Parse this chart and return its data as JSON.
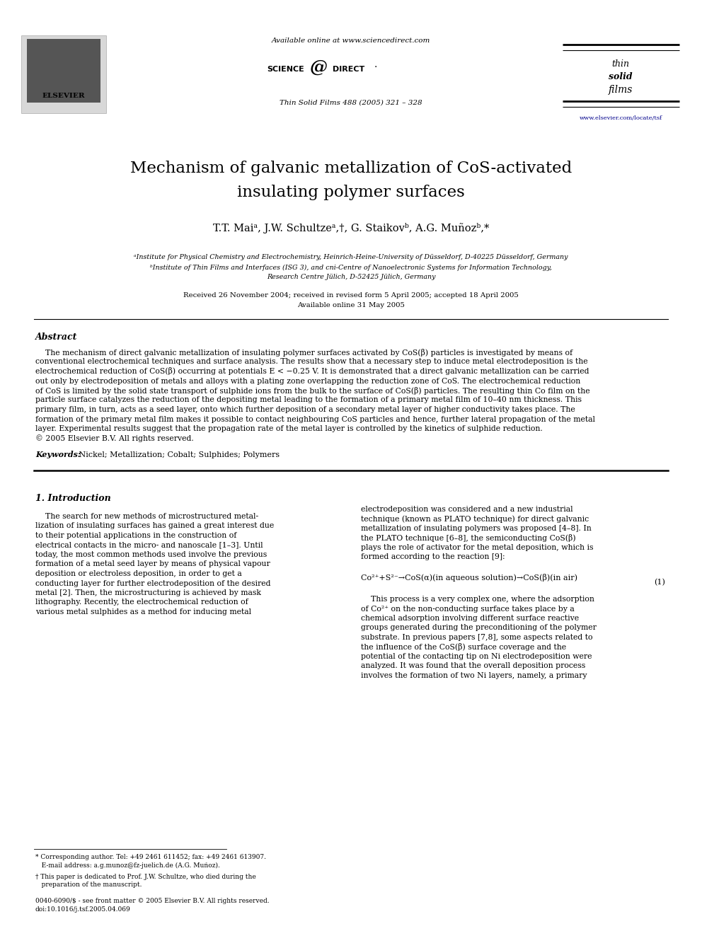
{
  "bg_color": "#ffffff",
  "page_width": 9.92,
  "page_height": 13.23,
  "header_available_online": "Available online at www.sciencedirect.com",
  "header_journal": "Thin Solid Films 488 (2005) 321 – 328",
  "header_url": "www.elsevier.com/locate/tsf",
  "title_line1": "Mechanism of galvanic metallization of CoS-activated",
  "title_line2": "insulating polymer surfaces",
  "authors": "T.T. Maiᵃ, J.W. Schultzeᵃ,†, G. Staikovᵇ, A.G. Muñozᵇ,*",
  "affil_a": "ᵃInstitute for Physical Chemistry and Electrochemistry, Heinrich-Heine-University of Düsseldorf, D-40225 Düsseldorf, Germany",
  "affil_b": "ᵇInstitute of Thin Films and Interfaces (ISG 3), and cni-Centre of Nanoelectronic Systems for Information Technology,\nResearch Centre Jülich, D-52425 Jülich, Germany",
  "received": "Received 26 November 2004; received in revised form 5 April 2005; accepted 18 April 2005",
  "available": "Available online 31 May 2005",
  "abstract_title": "Abstract",
  "abstract_body_lines": [
    "    The mechanism of direct galvanic metallization of insulating polymer surfaces activated by CoS(β) particles is investigated by means of",
    "conventional electrochemical techniques and surface analysis. The results show that a necessary step to induce metal electrodeposition is the",
    "electrochemical reduction of CoS(β) occurring at potentials E < −0.25 V. It is demonstrated that a direct galvanic metallization can be carried",
    "out only by electrodeposition of metals and alloys with a plating zone overlapping the reduction zone of CoS. The electrochemical reduction",
    "of CoS is limited by the solid state transport of sulphide ions from the bulk to the surface of CoS(β) particles. The resulting thin Co film on the",
    "particle surface catalyzes the reduction of the depositing metal leading to the formation of a primary metal film of 10–40 nm thickness. This",
    "primary film, in turn, acts as a seed layer, onto which further deposition of a secondary metal layer of higher conductivity takes place. The",
    "formation of the primary metal film makes it possible to contact neighbouring CoS particles and hence, further lateral propagation of the metal",
    "layer. Experimental results suggest that the propagation rate of the metal layer is controlled by the kinetics of sulphide reduction.",
    "© 2005 Elsevier B.V. All rights reserved."
  ],
  "keywords_label": "Keywords:",
  "keywords": " Nickel; Metallization; Cobalt; Sulphides; Polymers",
  "section1_title": "1. Introduction",
  "section1_left_lines": [
    "    The search for new methods of microstructured metal-",
    "lization of insulating surfaces has gained a great interest due",
    "to their potential applications in the construction of",
    "electrical contacts in the micro- and nanoscale [1–3]. Until",
    "today, the most common methods used involve the previous",
    "formation of a metal seed layer by means of physical vapour",
    "deposition or electroless deposition, in order to get a",
    "conducting layer for further electrodeposition of the desired",
    "metal [2]. Then, the microstructuring is achieved by mask",
    "lithography. Recently, the electrochemical reduction of",
    "various metal sulphides as a method for inducing metal"
  ],
  "section1_right_lines": [
    "electrodeposition was considered and a new industrial",
    "technique (known as PLATO technique) for direct galvanic",
    "metallization of insulating polymers was proposed [4–8]. In",
    "the PLATO technique [6–8], the semiconducting CoS(β)",
    "plays the role of activator for the metal deposition, which is",
    "formed according to the reaction [9]:"
  ],
  "reaction_line1": "Co²⁺+S²⁻→CoS(α)(in aqueous solution)→CoS(β)(in air)",
  "reaction_number": "(1)",
  "section1_right2_lines": [
    "    This process is a very complex one, where the adsorption",
    "of Co²⁺ on the non-conducting surface takes place by a",
    "chemical adsorption involving different surface reactive",
    "groups generated during the preconditioning of the polymer",
    "substrate. In previous papers [7,8], some aspects related to",
    "the influence of the CoS(β) surface coverage and the",
    "potential of the contacting tip on Ni electrodeposition were",
    "analyzed. It was found that the overall deposition process",
    "involves the formation of two Ni layers, namely, a primary"
  ],
  "footnote_star_lines": [
    "* Corresponding author. Tel: +49 2461 611452; fax: +49 2461 613907.",
    "   E-mail address: a.g.munoz@fz-juelich.de (A.G. Muñoz)."
  ],
  "footnote_dagger_lines": [
    "† This paper is dedicated to Prof. J.W. Schultze, who died during the",
    "   preparation of the manuscript."
  ],
  "footnote_bottom_lines": [
    "0040-6090/$ - see front matter © 2005 Elsevier B.V. All rights reserved.",
    "doi:10.1016/j.tsf.2005.04.069"
  ],
  "line_color": "#000000",
  "url_color": "#00008B"
}
